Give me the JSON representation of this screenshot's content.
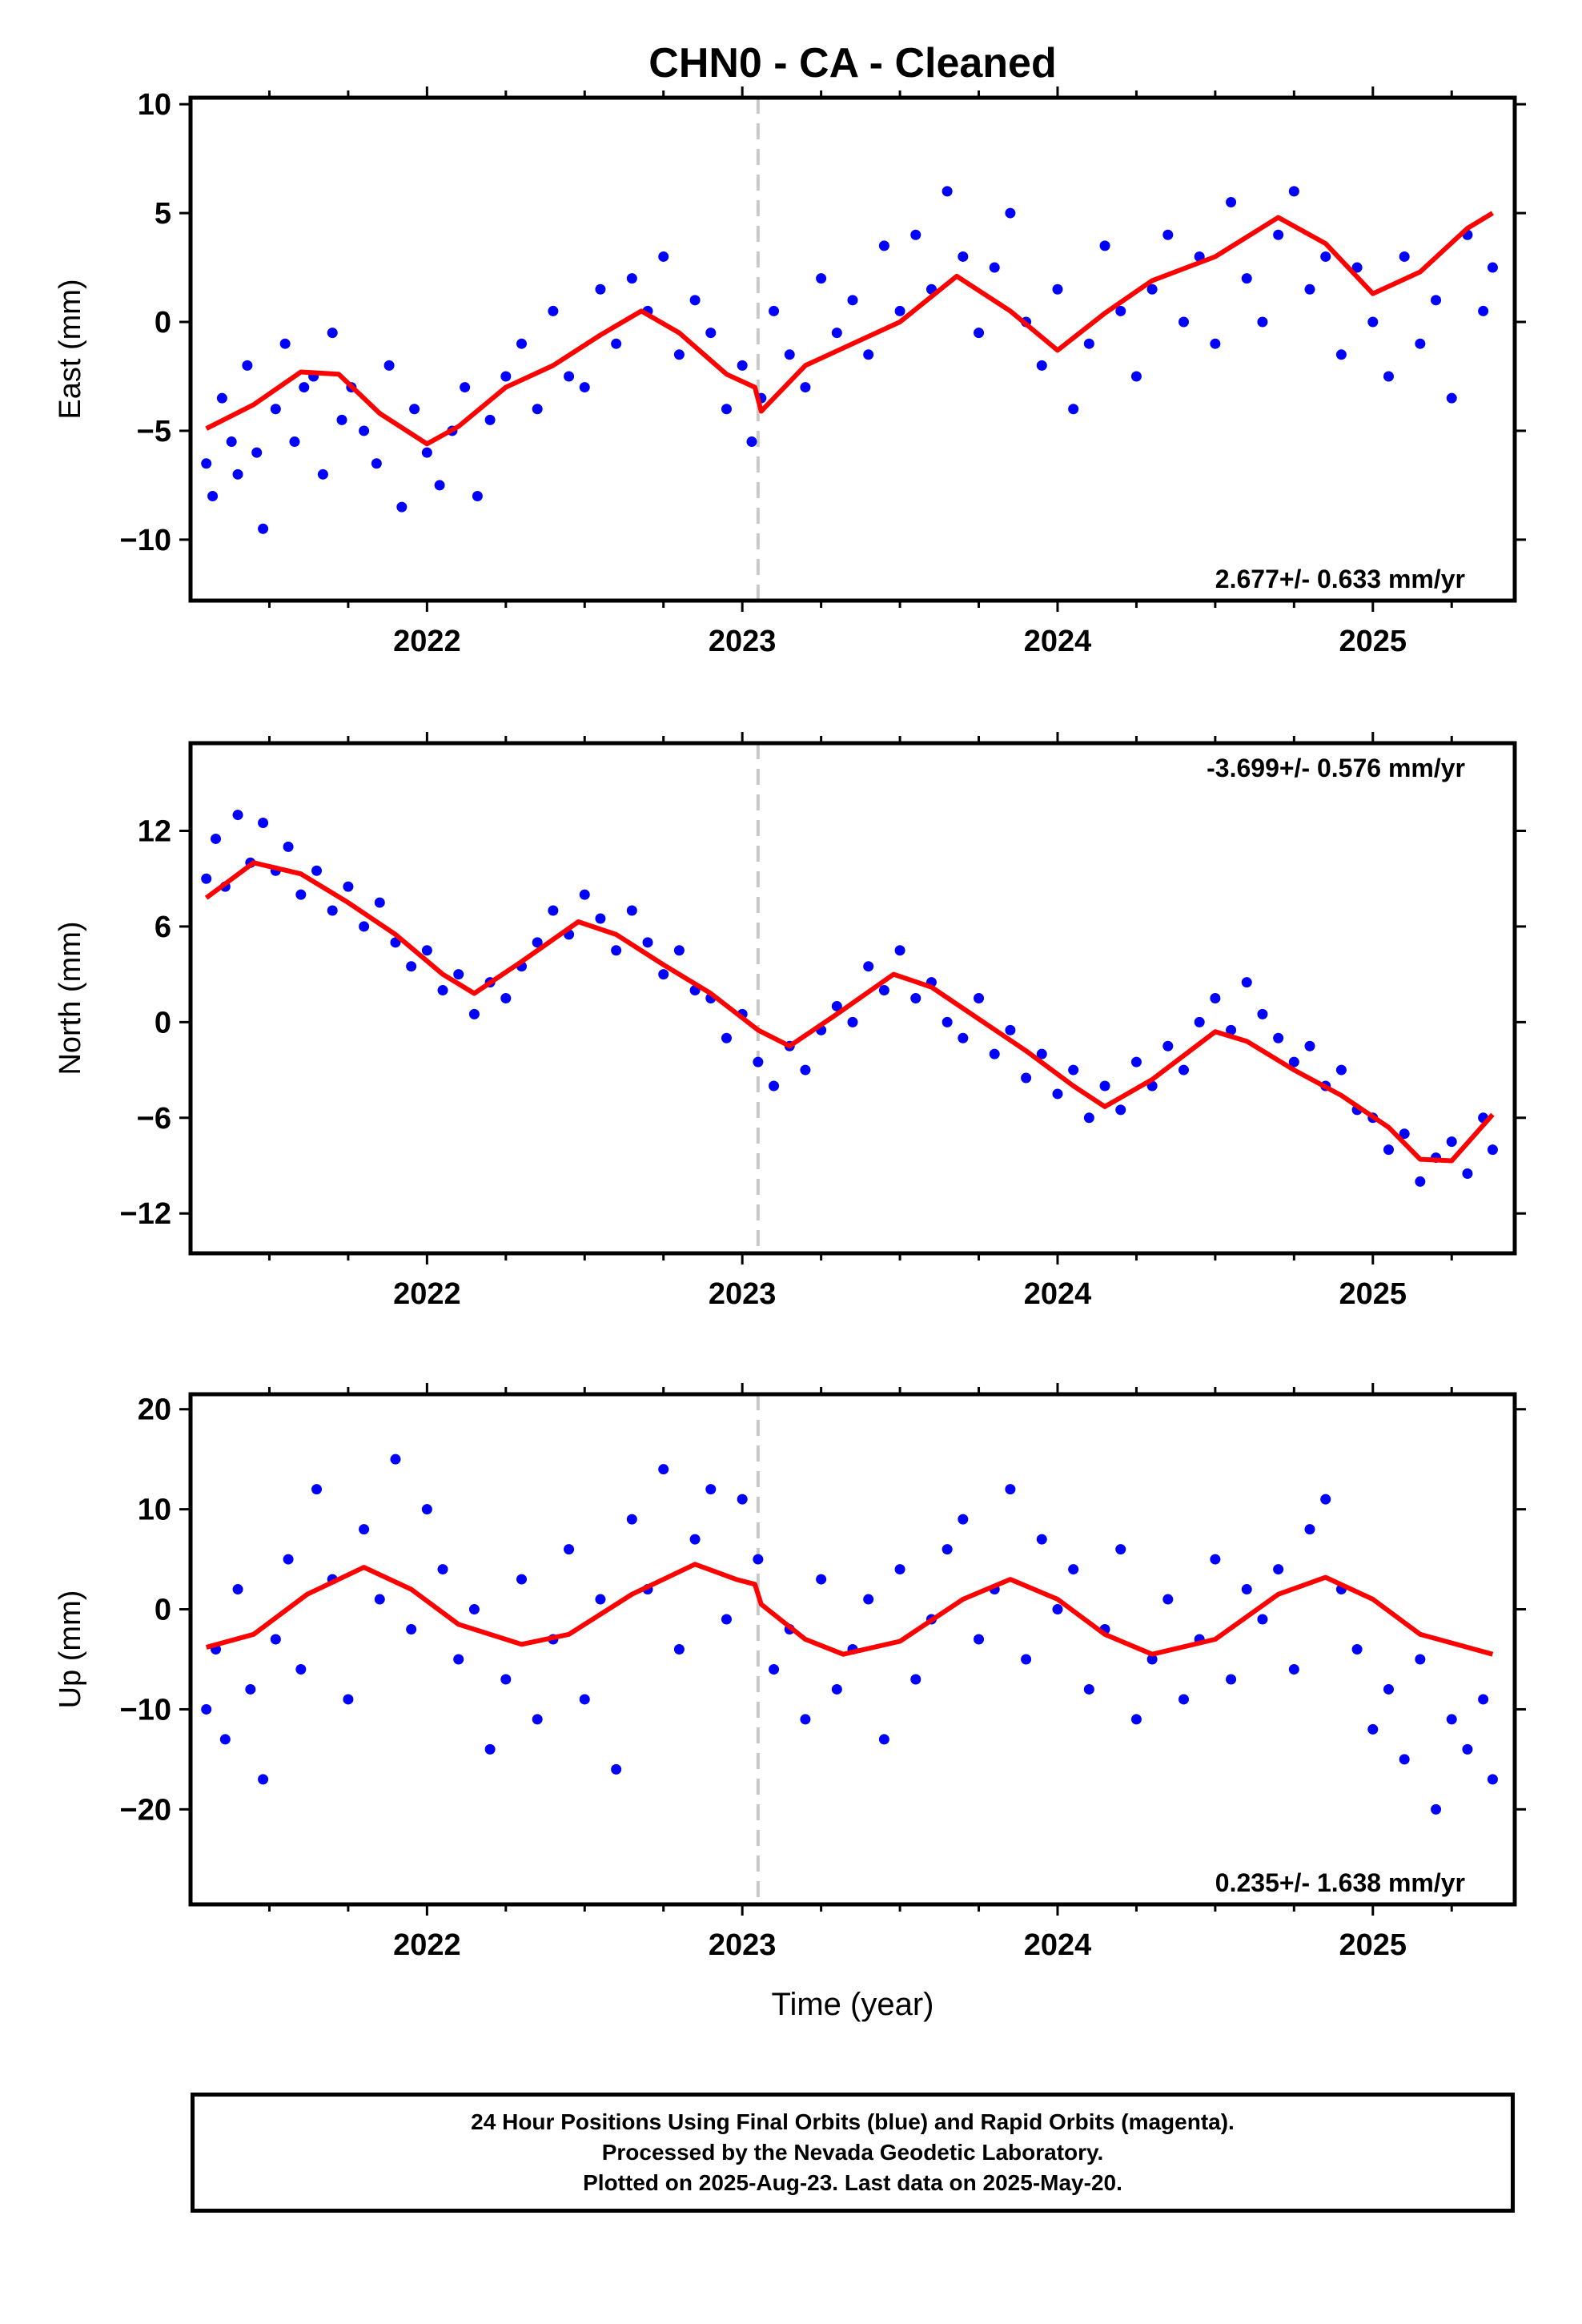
{
  "chart_data": [
    {
      "type": "scatter",
      "title": "CHN0  - CA - Cleaned",
      "ylabel": "East (mm)",
      "xlabel": "",
      "rate_label": "2.677+/- 0.633 mm/yr",
      "rate_position": "bottom-right",
      "xlim": [
        2021.25,
        2025.45
      ],
      "ylim": [
        -12.8,
        10.3
      ],
      "x_ticks": [
        2022,
        2023,
        2024,
        2025
      ],
      "x_tick_labels": [
        "2022",
        "2023",
        "2024",
        "2025"
      ],
      "y_ticks": [
        -10,
        -5,
        0,
        5,
        10
      ],
      "y_tick_labels": [
        "−10",
        "−5",
        "0",
        "5",
        "10"
      ],
      "marker_line_x": 2023.05,
      "series": [
        {
          "kind": "points",
          "color": "#0000ff",
          "x": [
            2021.3,
            2021.32,
            2021.35,
            2021.38,
            2021.4,
            2021.43,
            2021.46,
            2021.48,
            2021.52,
            2021.55,
            2021.58,
            2021.61,
            2021.64,
            2021.67,
            2021.7,
            2021.73,
            2021.76,
            2021.8,
            2021.84,
            2021.88,
            2021.92,
            2021.96,
            2022.0,
            2022.04,
            2022.08,
            2022.12,
            2022.16,
            2022.2,
            2022.25,
            2022.3,
            2022.35,
            2022.4,
            2022.45,
            2022.5,
            2022.55,
            2022.6,
            2022.65,
            2022.7,
            2022.75,
            2022.8,
            2022.85,
            2022.9,
            2022.95,
            2023.0,
            2023.03,
            2023.06,
            2023.1,
            2023.15,
            2023.2,
            2023.25,
            2023.3,
            2023.35,
            2023.4,
            2023.45,
            2023.5,
            2023.55,
            2023.6,
            2023.65,
            2023.7,
            2023.75,
            2023.8,
            2023.85,
            2023.9,
            2023.95,
            2024.0,
            2024.05,
            2024.1,
            2024.15,
            2024.2,
            2024.25,
            2024.3,
            2024.35,
            2024.4,
            2024.45,
            2024.5,
            2024.55,
            2024.6,
            2024.65,
            2024.7,
            2024.75,
            2024.8,
            2024.85,
            2024.9,
            2024.95,
            2025.0,
            2025.05,
            2025.1,
            2025.15,
            2025.2,
            2025.25,
            2025.3,
            2025.35,
            2025.38
          ],
          "y": [
            -6.5,
            -8.0,
            -3.5,
            -5.5,
            -7.0,
            -2.0,
            -6.0,
            -9.5,
            -4.0,
            -1.0,
            -5.5,
            -3.0,
            -2.5,
            -7.0,
            -0.5,
            -4.5,
            -3.0,
            -5.0,
            -6.5,
            -2.0,
            -8.5,
            -4.0,
            -6.0,
            -7.5,
            -5.0,
            -3.0,
            -8.0,
            -4.5,
            -2.5,
            -1.0,
            -4.0,
            0.5,
            -2.5,
            -3.0,
            1.5,
            -1.0,
            2.0,
            0.5,
            3.0,
            -1.5,
            1.0,
            -0.5,
            -4.0,
            -2.0,
            -5.5,
            -3.5,
            0.5,
            -1.5,
            -3.0,
            2.0,
            -0.5,
            1.0,
            -1.5,
            3.5,
            0.5,
            4.0,
            1.5,
            6.0,
            3.0,
            -0.5,
            2.5,
            5.0,
            0.0,
            -2.0,
            1.5,
            -4.0,
            -1.0,
            3.5,
            0.5,
            -2.5,
            1.5,
            4.0,
            0.0,
            3.0,
            -1.0,
            5.5,
            2.0,
            0.0,
            4.0,
            6.0,
            1.5,
            3.0,
            -1.5,
            2.5,
            0.0,
            -2.5,
            3.0,
            -1.0,
            1.0,
            -3.5,
            4.0,
            0.5,
            2.5
          ]
        },
        {
          "kind": "line",
          "color": "#ff0000",
          "x": [
            2021.3,
            2021.45,
            2021.6,
            2021.72,
            2021.85,
            2022.0,
            2022.1,
            2022.25,
            2022.4,
            2022.55,
            2022.68,
            2022.8,
            2022.95,
            2023.04,
            2023.06,
            2023.2,
            2023.35,
            2023.5,
            2023.68,
            2023.85,
            2024.0,
            2024.15,
            2024.3,
            2024.5,
            2024.7,
            2024.85,
            2025.0,
            2025.15,
            2025.3,
            2025.38
          ],
          "y": [
            -4.9,
            -3.8,
            -2.3,
            -2.4,
            -4.2,
            -5.6,
            -4.8,
            -3.0,
            -2.0,
            -0.6,
            0.5,
            -0.5,
            -2.4,
            -3.0,
            -4.1,
            -2.0,
            -1.0,
            0.0,
            2.1,
            0.5,
            -1.3,
            0.4,
            1.9,
            3.0,
            4.8,
            3.6,
            1.3,
            2.3,
            4.3,
            5.0
          ]
        }
      ]
    },
    {
      "type": "scatter",
      "title": "",
      "ylabel": "North (mm)",
      "xlabel": "",
      "rate_label": "-3.699+/- 0.576 mm/yr",
      "rate_position": "top-right",
      "xlim": [
        2021.25,
        2025.45
      ],
      "ylim": [
        -14.5,
        17.5
      ],
      "x_ticks": [
        2022,
        2023,
        2024,
        2025
      ],
      "x_tick_labels": [
        "2022",
        "2023",
        "2024",
        "2025"
      ],
      "y_ticks": [
        -12,
        -6,
        0,
        6,
        12
      ],
      "y_tick_labels": [
        "−12",
        "−6",
        "0",
        "6",
        "12"
      ],
      "marker_line_x": 2023.05,
      "series": [
        {
          "kind": "points",
          "color": "#0000ff",
          "x": [
            2021.3,
            2021.33,
            2021.36,
            2021.4,
            2021.44,
            2021.48,
            2021.52,
            2021.56,
            2021.6,
            2021.65,
            2021.7,
            2021.75,
            2021.8,
            2021.85,
            2021.9,
            2021.95,
            2022.0,
            2022.05,
            2022.1,
            2022.15,
            2022.2,
            2022.25,
            2022.3,
            2022.35,
            2022.4,
            2022.45,
            2022.5,
            2022.55,
            2022.6,
            2022.65,
            2022.7,
            2022.75,
            2022.8,
            2022.85,
            2022.9,
            2022.95,
            2023.0,
            2023.05,
            2023.1,
            2023.15,
            2023.2,
            2023.25,
            2023.3,
            2023.35,
            2023.4,
            2023.45,
            2023.5,
            2023.55,
            2023.6,
            2023.65,
            2023.7,
            2023.75,
            2023.8,
            2023.85,
            2023.9,
            2023.95,
            2024.0,
            2024.05,
            2024.1,
            2024.15,
            2024.2,
            2024.25,
            2024.3,
            2024.35,
            2024.4,
            2024.45,
            2024.5,
            2024.55,
            2024.6,
            2024.65,
            2024.7,
            2024.75,
            2024.8,
            2024.85,
            2024.9,
            2024.95,
            2025.0,
            2025.05,
            2025.1,
            2025.15,
            2025.2,
            2025.25,
            2025.3,
            2025.35,
            2025.38
          ],
          "y": [
            9.0,
            11.5,
            8.5,
            13.0,
            10.0,
            12.5,
            9.5,
            11.0,
            8.0,
            9.5,
            7.0,
            8.5,
            6.0,
            7.5,
            5.0,
            3.5,
            4.5,
            2.0,
            3.0,
            0.5,
            2.5,
            1.5,
            3.5,
            5.0,
            7.0,
            5.5,
            8.0,
            6.5,
            4.5,
            7.0,
            5.0,
            3.0,
            4.5,
            2.0,
            1.5,
            -1.0,
            0.5,
            -2.5,
            -4.0,
            -1.5,
            -3.0,
            -0.5,
            1.0,
            0.0,
            3.5,
            2.0,
            4.5,
            1.5,
            2.5,
            0.0,
            -1.0,
            1.5,
            -2.0,
            -0.5,
            -3.5,
            -2.0,
            -4.5,
            -3.0,
            -6.0,
            -4.0,
            -5.5,
            -2.5,
            -4.0,
            -1.5,
            -3.0,
            0.0,
            1.5,
            -0.5,
            2.5,
            0.5,
            -1.0,
            -2.5,
            -1.5,
            -4.0,
            -3.0,
            -5.5,
            -6.0,
            -8.0,
            -7.0,
            -10.0,
            -8.5,
            -7.5,
            -9.5,
            -6.0,
            -8.0
          ]
        },
        {
          "kind": "line",
          "color": "#ff0000",
          "x": [
            2021.3,
            2021.45,
            2021.6,
            2021.75,
            2021.9,
            2022.05,
            2022.15,
            2022.3,
            2022.48,
            2022.6,
            2022.75,
            2022.9,
            2023.05,
            2023.15,
            2023.3,
            2023.48,
            2023.6,
            2023.75,
            2023.9,
            2024.05,
            2024.15,
            2024.3,
            2024.5,
            2024.6,
            2024.75,
            2024.9,
            2025.05,
            2025.15,
            2025.25,
            2025.38
          ],
          "y": [
            7.8,
            10.0,
            9.3,
            7.5,
            5.5,
            3.0,
            1.8,
            3.8,
            6.3,
            5.5,
            3.6,
            1.8,
            -0.5,
            -1.5,
            0.5,
            3.0,
            2.2,
            0.2,
            -1.8,
            -4.0,
            -5.3,
            -3.6,
            -0.6,
            -1.2,
            -3.0,
            -4.6,
            -6.6,
            -8.6,
            -8.7,
            -5.8
          ]
        }
      ]
    },
    {
      "type": "scatter",
      "title": "",
      "ylabel": "Up (mm)",
      "xlabel": "Time (year)",
      "rate_label": "0.235+/- 1.638 mm/yr",
      "rate_position": "bottom-right",
      "xlim": [
        2021.25,
        2025.45
      ],
      "ylim": [
        -29.5,
        21.5
      ],
      "x_ticks": [
        2022,
        2023,
        2024,
        2025
      ],
      "x_tick_labels": [
        "2022",
        "2023",
        "2024",
        "2025"
      ],
      "y_ticks": [
        -20,
        -10,
        0,
        10,
        20
      ],
      "y_tick_labels": [
        "−20",
        "−10",
        "0",
        "10",
        "20"
      ],
      "marker_line_x": 2023.05,
      "series": [
        {
          "kind": "points",
          "color": "#0000ff",
          "x": [
            2021.3,
            2021.33,
            2021.36,
            2021.4,
            2021.44,
            2021.48,
            2021.52,
            2021.56,
            2021.6,
            2021.65,
            2021.7,
            2021.75,
            2021.8,
            2021.85,
            2021.9,
            2021.95,
            2022.0,
            2022.05,
            2022.1,
            2022.15,
            2022.2,
            2022.25,
            2022.3,
            2022.35,
            2022.4,
            2022.45,
            2022.5,
            2022.55,
            2022.6,
            2022.65,
            2022.7,
            2022.75,
            2022.8,
            2022.85,
            2022.9,
            2022.95,
            2023.0,
            2023.05,
            2023.1,
            2023.15,
            2023.2,
            2023.25,
            2023.3,
            2023.35,
            2023.4,
            2023.45,
            2023.5,
            2023.55,
            2023.6,
            2023.65,
            2023.7,
            2023.75,
            2023.8,
            2023.85,
            2023.9,
            2023.95,
            2024.0,
            2024.05,
            2024.1,
            2024.15,
            2024.2,
            2024.25,
            2024.3,
            2024.35,
            2024.4,
            2024.45,
            2024.5,
            2024.55,
            2024.6,
            2024.65,
            2024.7,
            2024.75,
            2024.8,
            2024.85,
            2024.9,
            2024.95,
            2025.0,
            2025.05,
            2025.1,
            2025.15,
            2025.2,
            2025.25,
            2025.3,
            2025.35,
            2025.38
          ],
          "y": [
            -10,
            -4,
            -13,
            2,
            -8,
            -17,
            -3,
            5,
            -6,
            12,
            3,
            -9,
            8,
            1,
            15,
            -2,
            10,
            4,
            -5,
            0,
            -14,
            -7,
            3,
            -11,
            -3,
            6,
            -9,
            1,
            -16,
            9,
            2,
            14,
            -4,
            7,
            12,
            -1,
            11,
            5,
            -6,
            -2,
            -11,
            3,
            -8,
            -4,
            1,
            -13,
            4,
            -7,
            -1,
            6,
            9,
            -3,
            2,
            12,
            -5,
            7,
            0,
            4,
            -8,
            -2,
            6,
            -11,
            -5,
            1,
            -9,
            -3,
            5,
            -7,
            2,
            -1,
            4,
            -6,
            8,
            11,
            2,
            -4,
            -12,
            -8,
            -15,
            -5,
            -20,
            -11,
            -14,
            -9,
            -17
          ]
        },
        {
          "kind": "line",
          "color": "#ff0000",
          "x": [
            2021.3,
            2021.45,
            2021.62,
            2021.8,
            2021.95,
            2022.1,
            2022.3,
            2022.45,
            2022.65,
            2022.85,
            2022.98,
            2023.04,
            2023.06,
            2023.2,
            2023.32,
            2023.5,
            2023.7,
            2023.85,
            2024.0,
            2024.15,
            2024.3,
            2024.5,
            2024.7,
            2024.85,
            2025.0,
            2025.15,
            2025.3,
            2025.38
          ],
          "y": [
            -3.8,
            -2.5,
            1.5,
            4.2,
            2.0,
            -1.5,
            -3.5,
            -2.5,
            1.5,
            4.5,
            3.0,
            2.5,
            0.5,
            -3.0,
            -4.5,
            -3.2,
            1.0,
            3.0,
            1.0,
            -2.5,
            -4.5,
            -3.0,
            1.5,
            3.2,
            1.0,
            -2.5,
            -3.8,
            -4.5
          ]
        }
      ]
    }
  ],
  "footer": {
    "line1": "24 Hour Positions Using Final Orbits (blue) and Rapid Orbits (magenta).",
    "line2": "Processed by the Nevada Geodetic Laboratory.",
    "line3": "Plotted on 2025-Aug-23. Last data on 2025-May-20."
  }
}
